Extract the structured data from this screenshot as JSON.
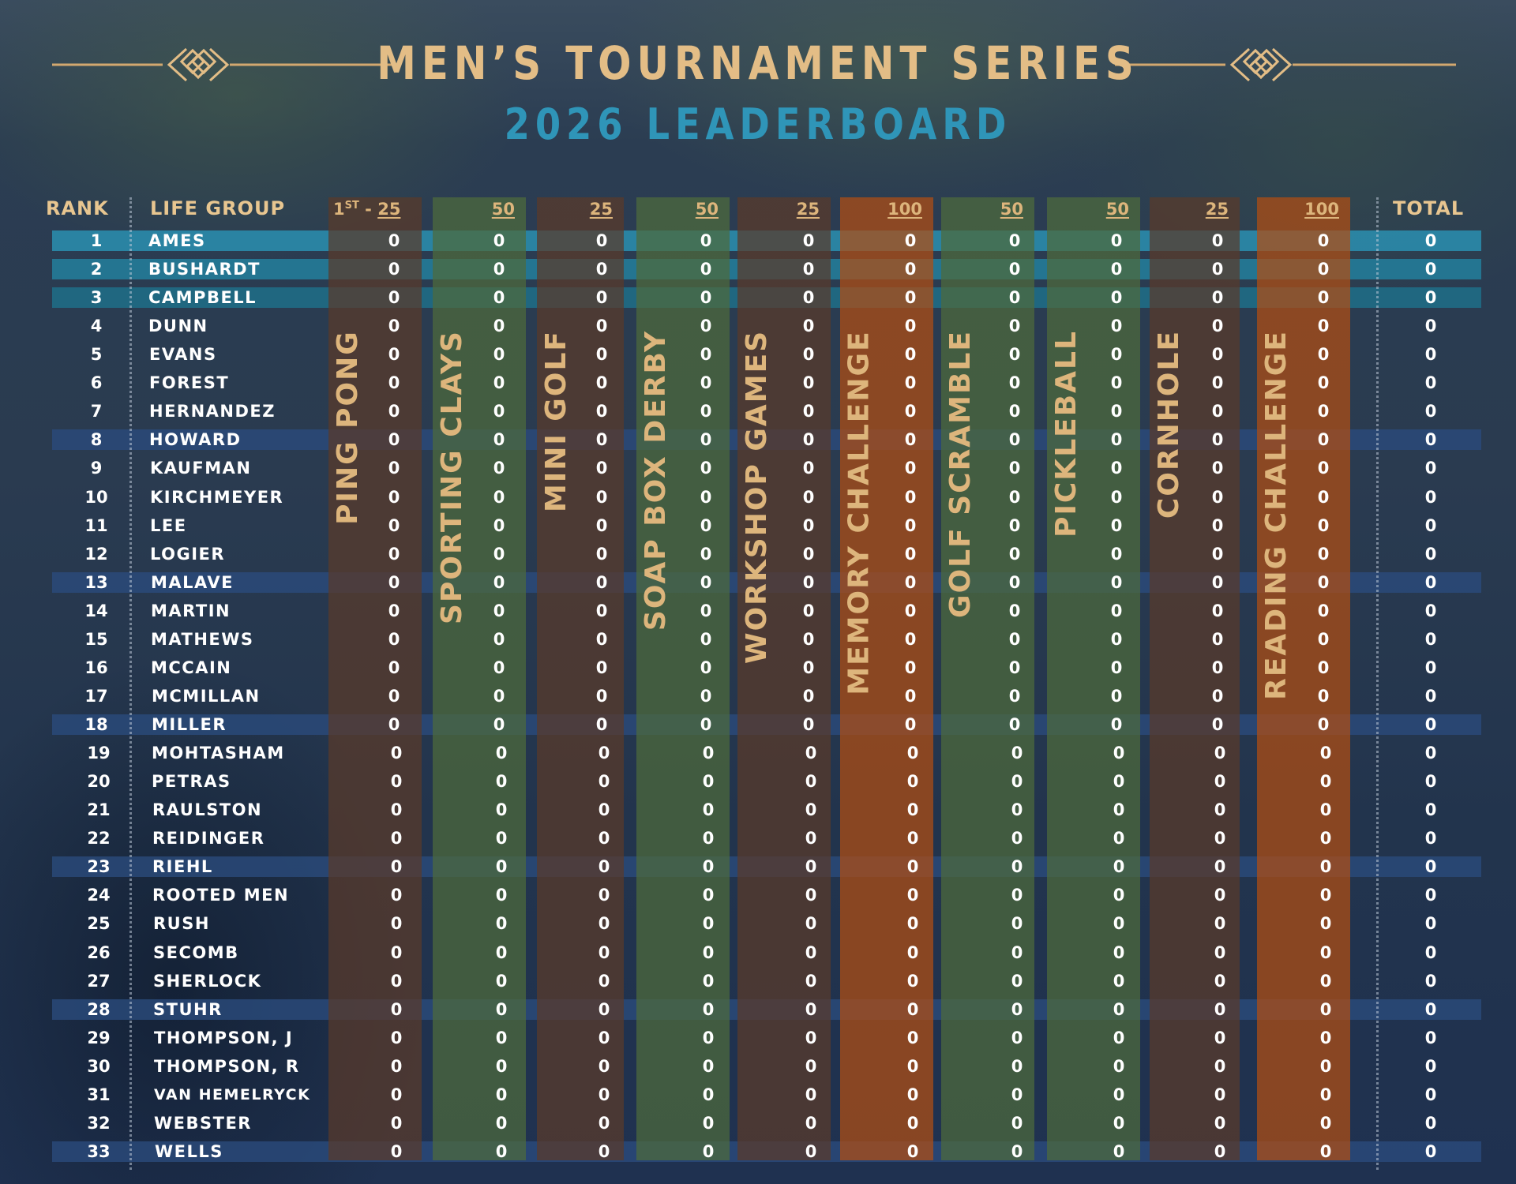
{
  "header": {
    "title": "MEN’S TOURNAMENT SERIES",
    "subtitle": "2026 LEADERBOARD"
  },
  "table": {
    "rank_header": "RANK",
    "group_header": "LIFE GROUP",
    "total_header": "TOTAL",
    "first_points_prefix": "1",
    "first_points_sup": "ST",
    "first_points_sep": " - ",
    "events": [
      {
        "name": "PING PONG",
        "points": "25",
        "color": "#5a3a2a"
      },
      {
        "name": "SPORTING CLAYS",
        "points": "50",
        "color": "#4d6b3b"
      },
      {
        "name": "MINI GOLF",
        "points": "25",
        "color": "#5a3a2a"
      },
      {
        "name": "SOAP BOX DERBY",
        "points": "50",
        "color": "#4d6b3b"
      },
      {
        "name": "WORKSHOP GAMES",
        "points": "25",
        "color": "#5a3a2a"
      },
      {
        "name": "MEMORY CHALLENGE",
        "points": "100",
        "color": "#b24e12"
      },
      {
        "name": "GOLF SCRAMBLE",
        "points": "50",
        "color": "#4d6b3b"
      },
      {
        "name": "PICKLEBALL",
        "points": "50",
        "color": "#4d6b3b"
      },
      {
        "name": "CORNHOLE",
        "points": "25",
        "color": "#5a3a2a"
      },
      {
        "name": "READING CHALLENGE",
        "points": "100",
        "color": "#b24e12"
      }
    ],
    "rows": [
      {
        "rank": "1",
        "name": "AMES",
        "scores": [
          "0",
          "0",
          "0",
          "0",
          "0",
          "0",
          "0",
          "0",
          "0",
          "0"
        ],
        "total": "0"
      },
      {
        "rank": "2",
        "name": "BUSHARDT",
        "scores": [
          "0",
          "0",
          "0",
          "0",
          "0",
          "0",
          "0",
          "0",
          "0",
          "0"
        ],
        "total": "0"
      },
      {
        "rank": "3",
        "name": "CAMPBELL",
        "scores": [
          "0",
          "0",
          "0",
          "0",
          "0",
          "0",
          "0",
          "0",
          "0",
          "0"
        ],
        "total": "0"
      },
      {
        "rank": "4",
        "name": "DUNN",
        "scores": [
          "0",
          "0",
          "0",
          "0",
          "0",
          "0",
          "0",
          "0",
          "0",
          "0"
        ],
        "total": "0"
      },
      {
        "rank": "5",
        "name": "EVANS",
        "scores": [
          "0",
          "0",
          "0",
          "0",
          "0",
          "0",
          "0",
          "0",
          "0",
          "0"
        ],
        "total": "0"
      },
      {
        "rank": "6",
        "name": "FOREST",
        "scores": [
          "0",
          "0",
          "0",
          "0",
          "0",
          "0",
          "0",
          "0",
          "0",
          "0"
        ],
        "total": "0"
      },
      {
        "rank": "7",
        "name": "HERNANDEZ",
        "scores": [
          "0",
          "0",
          "0",
          "0",
          "0",
          "0",
          "0",
          "0",
          "0",
          "0"
        ],
        "total": "0"
      },
      {
        "rank": "8",
        "name": "HOWARD",
        "scores": [
          "0",
          "0",
          "0",
          "0",
          "0",
          "0",
          "0",
          "0",
          "0",
          "0"
        ],
        "total": "0"
      },
      {
        "rank": "9",
        "name": "KAUFMAN",
        "scores": [
          "0",
          "0",
          "0",
          "0",
          "0",
          "0",
          "0",
          "0",
          "0",
          "0"
        ],
        "total": "0"
      },
      {
        "rank": "10",
        "name": "KIRCHMEYER",
        "scores": [
          "0",
          "0",
          "0",
          "0",
          "0",
          "0",
          "0",
          "0",
          "0",
          "0"
        ],
        "total": "0"
      },
      {
        "rank": "11",
        "name": "LEE",
        "scores": [
          "0",
          "0",
          "0",
          "0",
          "0",
          "0",
          "0",
          "0",
          "0",
          "0"
        ],
        "total": "0"
      },
      {
        "rank": "12",
        "name": "LOGIER",
        "scores": [
          "0",
          "0",
          "0",
          "0",
          "0",
          "0",
          "0",
          "0",
          "0",
          "0"
        ],
        "total": "0"
      },
      {
        "rank": "13",
        "name": "MALAVE",
        "scores": [
          "0",
          "0",
          "0",
          "0",
          "0",
          "0",
          "0",
          "0",
          "0",
          "0"
        ],
        "total": "0"
      },
      {
        "rank": "14",
        "name": "MARTIN",
        "scores": [
          "0",
          "0",
          "0",
          "0",
          "0",
          "0",
          "0",
          "0",
          "0",
          "0"
        ],
        "total": "0"
      },
      {
        "rank": "15",
        "name": "MATHEWS",
        "scores": [
          "0",
          "0",
          "0",
          "0",
          "0",
          "0",
          "0",
          "0",
          "0",
          "0"
        ],
        "total": "0"
      },
      {
        "rank": "16",
        "name": "MCCAIN",
        "scores": [
          "0",
          "0",
          "0",
          "0",
          "0",
          "0",
          "0",
          "0",
          "0",
          "0"
        ],
        "total": "0"
      },
      {
        "rank": "17",
        "name": "MCMILLAN",
        "scores": [
          "0",
          "0",
          "0",
          "0",
          "0",
          "0",
          "0",
          "0",
          "0",
          "0"
        ],
        "total": "0"
      },
      {
        "rank": "18",
        "name": "MILLER",
        "scores": [
          "0",
          "0",
          "0",
          "0",
          "0",
          "0",
          "0",
          "0",
          "0",
          "0"
        ],
        "total": "0"
      },
      {
        "rank": "19",
        "name": "MOHTASHAM",
        "scores": [
          "0",
          "0",
          "0",
          "0",
          "0",
          "0",
          "0",
          "0",
          "0",
          "0"
        ],
        "total": "0"
      },
      {
        "rank": "20",
        "name": "PETRAS",
        "scores": [
          "0",
          "0",
          "0",
          "0",
          "0",
          "0",
          "0",
          "0",
          "0",
          "0"
        ],
        "total": "0"
      },
      {
        "rank": "21",
        "name": "RAULSTON",
        "scores": [
          "0",
          "0",
          "0",
          "0",
          "0",
          "0",
          "0",
          "0",
          "0",
          "0"
        ],
        "total": "0"
      },
      {
        "rank": "22",
        "name": "REIDINGER",
        "scores": [
          "0",
          "0",
          "0",
          "0",
          "0",
          "0",
          "0",
          "0",
          "0",
          "0"
        ],
        "total": "0"
      },
      {
        "rank": "23",
        "name": "RIEHL",
        "scores": [
          "0",
          "0",
          "0",
          "0",
          "0",
          "0",
          "0",
          "0",
          "0",
          "0"
        ],
        "total": "0"
      },
      {
        "rank": "24",
        "name": "ROOTED MEN",
        "scores": [
          "0",
          "0",
          "0",
          "0",
          "0",
          "0",
          "0",
          "0",
          "0",
          "0"
        ],
        "total": "0"
      },
      {
        "rank": "25",
        "name": "RUSH",
        "scores": [
          "0",
          "0",
          "0",
          "0",
          "0",
          "0",
          "0",
          "0",
          "0",
          "0"
        ],
        "total": "0"
      },
      {
        "rank": "26",
        "name": "SECOMB",
        "scores": [
          "0",
          "0",
          "0",
          "0",
          "0",
          "0",
          "0",
          "0",
          "0",
          "0"
        ],
        "total": "0"
      },
      {
        "rank": "27",
        "name": "SHERLOCK",
        "scores": [
          "0",
          "0",
          "0",
          "0",
          "0",
          "0",
          "0",
          "0",
          "0",
          "0"
        ],
        "total": "0"
      },
      {
        "rank": "28",
        "name": "STUHR",
        "scores": [
          "0",
          "0",
          "0",
          "0",
          "0",
          "0",
          "0",
          "0",
          "0",
          "0"
        ],
        "total": "0"
      },
      {
        "rank": "29",
        "name": "THOMPSON, J",
        "scores": [
          "0",
          "0",
          "0",
          "0",
          "0",
          "0",
          "0",
          "0",
          "0",
          "0"
        ],
        "total": "0"
      },
      {
        "rank": "30",
        "name": "THOMPSON, R",
        "scores": [
          "0",
          "0",
          "0",
          "0",
          "0",
          "0",
          "0",
          "0",
          "0",
          "0"
        ],
        "total": "0"
      },
      {
        "rank": "31",
        "name": "VAN HEMELRYCK",
        "scores": [
          "0",
          "0",
          "0",
          "0",
          "0",
          "0",
          "0",
          "0",
          "0",
          "0"
        ],
        "total": "0"
      },
      {
        "rank": "32",
        "name": "WEBSTER",
        "scores": [
          "0",
          "0",
          "0",
          "0",
          "0",
          "0",
          "0",
          "0",
          "0",
          "0"
        ],
        "total": "0"
      },
      {
        "rank": "33",
        "name": "WELLS",
        "scores": [
          "0",
          "0",
          "0",
          "0",
          "0",
          "0",
          "0",
          "0",
          "0",
          "0"
        ],
        "total": "0"
      }
    ],
    "highlight_ranks": [
      "1",
      "2",
      "3",
      "8",
      "13",
      "18",
      "23",
      "28",
      "33"
    ],
    "top_colors": [
      "#2a8fb0",
      "#237f9c",
      "#1e6f88"
    ],
    "stripe_color": "#2b4b7c"
  },
  "colors": {
    "gold": "#e3bd86",
    "teal": "#2f95b8"
  }
}
